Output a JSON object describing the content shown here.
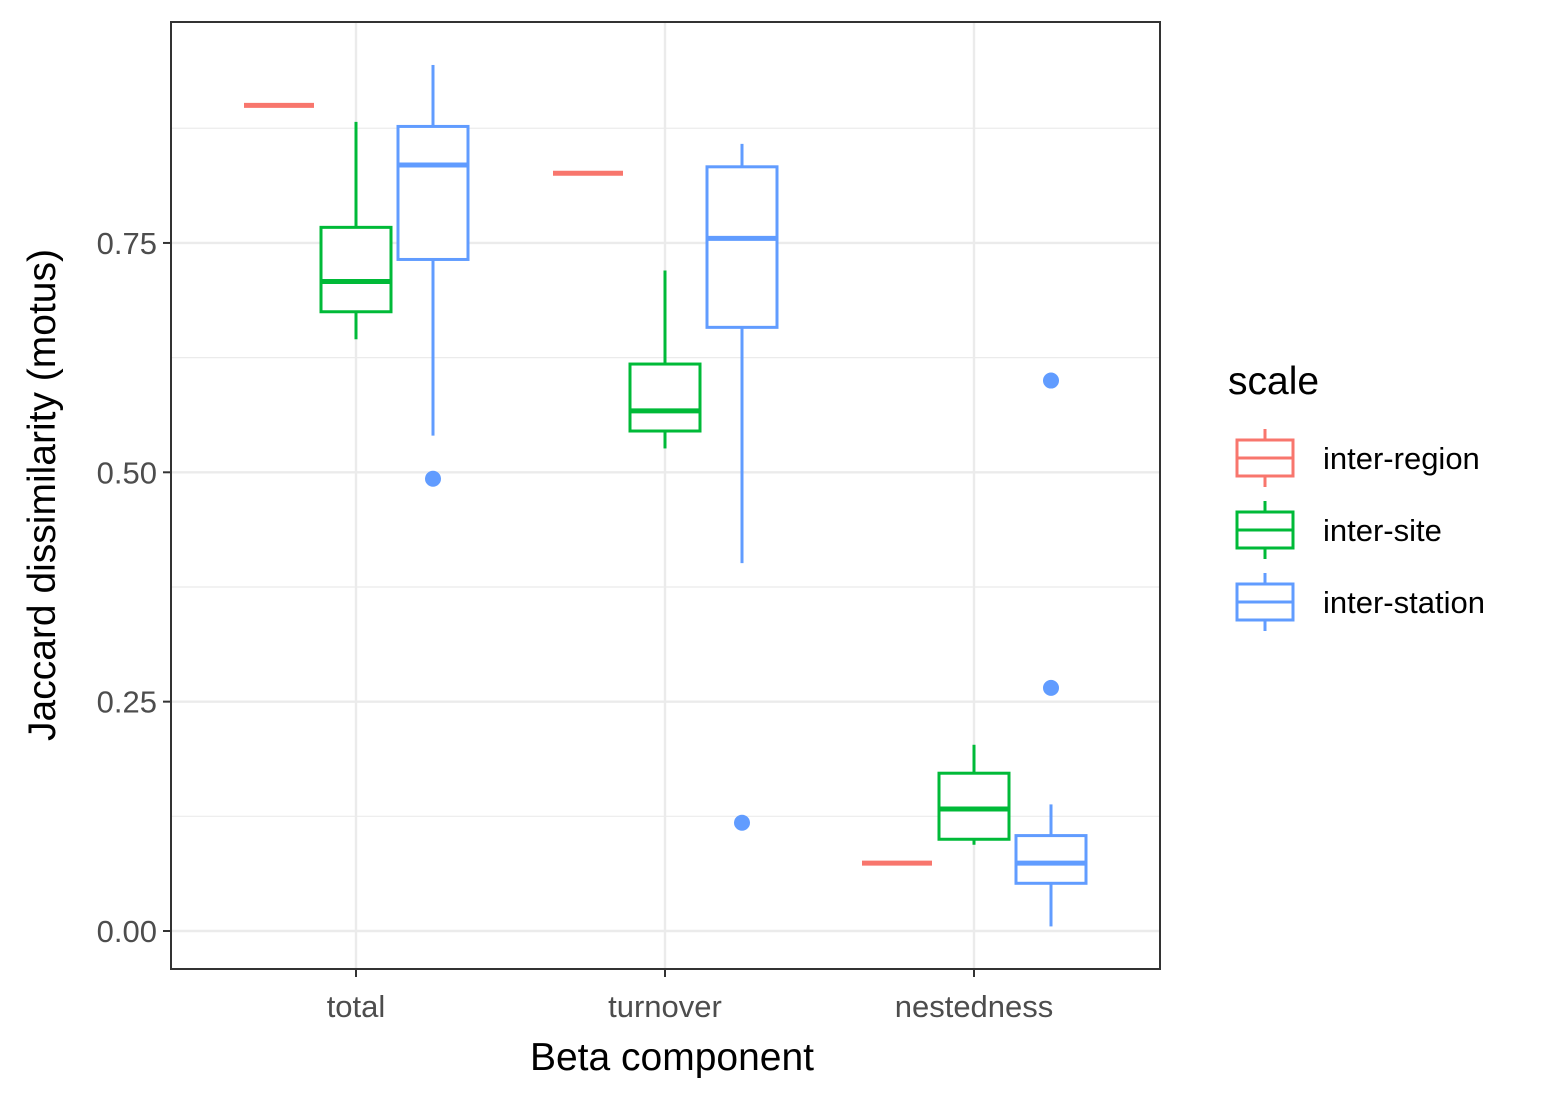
{
  "chart_data": {
    "type": "boxplot",
    "xlabel": "Beta component",
    "ylabel": "Jaccard dissimilarity (motus)",
    "categories": [
      "total",
      "turnover",
      "nestedness"
    ],
    "ylim": [
      -0.04,
      1.0
    ],
    "yticks": [
      0,
      0.25,
      0.5,
      0.75
    ],
    "ytick_labels": [
      "0.00",
      "0.25",
      "0.50",
      "0.75"
    ],
    "grid": true,
    "legend": {
      "title": "scale",
      "position": "right"
    },
    "series": [
      {
        "name": "inter-region",
        "color": "#F8766D",
        "boxes": [
          {
            "category": "total",
            "min": 0.9,
            "q1": 0.9,
            "median": 0.9,
            "q3": 0.9,
            "max": 0.9,
            "outliers": []
          },
          {
            "category": "turnover",
            "min": 0.826,
            "q1": 0.826,
            "median": 0.826,
            "q3": 0.826,
            "max": 0.826,
            "outliers": []
          },
          {
            "category": "nestedness",
            "min": 0.074,
            "q1": 0.074,
            "median": 0.074,
            "q3": 0.074,
            "max": 0.074,
            "outliers": []
          }
        ]
      },
      {
        "name": "inter-site",
        "color": "#00BA38",
        "boxes": [
          {
            "category": "total",
            "min": 0.645,
            "q1": 0.675,
            "median": 0.708,
            "q3": 0.767,
            "max": 0.882,
            "outliers": []
          },
          {
            "category": "turnover",
            "min": 0.526,
            "q1": 0.545,
            "median": 0.567,
            "q3": 0.618,
            "max": 0.72,
            "outliers": []
          },
          {
            "category": "nestedness",
            "min": 0.094,
            "q1": 0.1,
            "median": 0.133,
            "q3": 0.172,
            "max": 0.203,
            "outliers": []
          }
        ]
      },
      {
        "name": "inter-station",
        "color": "#619CFF",
        "boxes": [
          {
            "category": "total",
            "min": 0.54,
            "q1": 0.732,
            "median": 0.835,
            "q3": 0.877,
            "max": 0.944,
            "outliers": [
              0.493
            ]
          },
          {
            "category": "turnover",
            "min": 0.401,
            "q1": 0.658,
            "median": 0.755,
            "q3": 0.833,
            "max": 0.858,
            "outliers": [
              0.118
            ]
          },
          {
            "category": "nestedness",
            "min": 0.005,
            "q1": 0.052,
            "median": 0.074,
            "q3": 0.104,
            "max": 0.138,
            "outliers": [
              0.6,
              0.265
            ]
          }
        ]
      }
    ]
  }
}
